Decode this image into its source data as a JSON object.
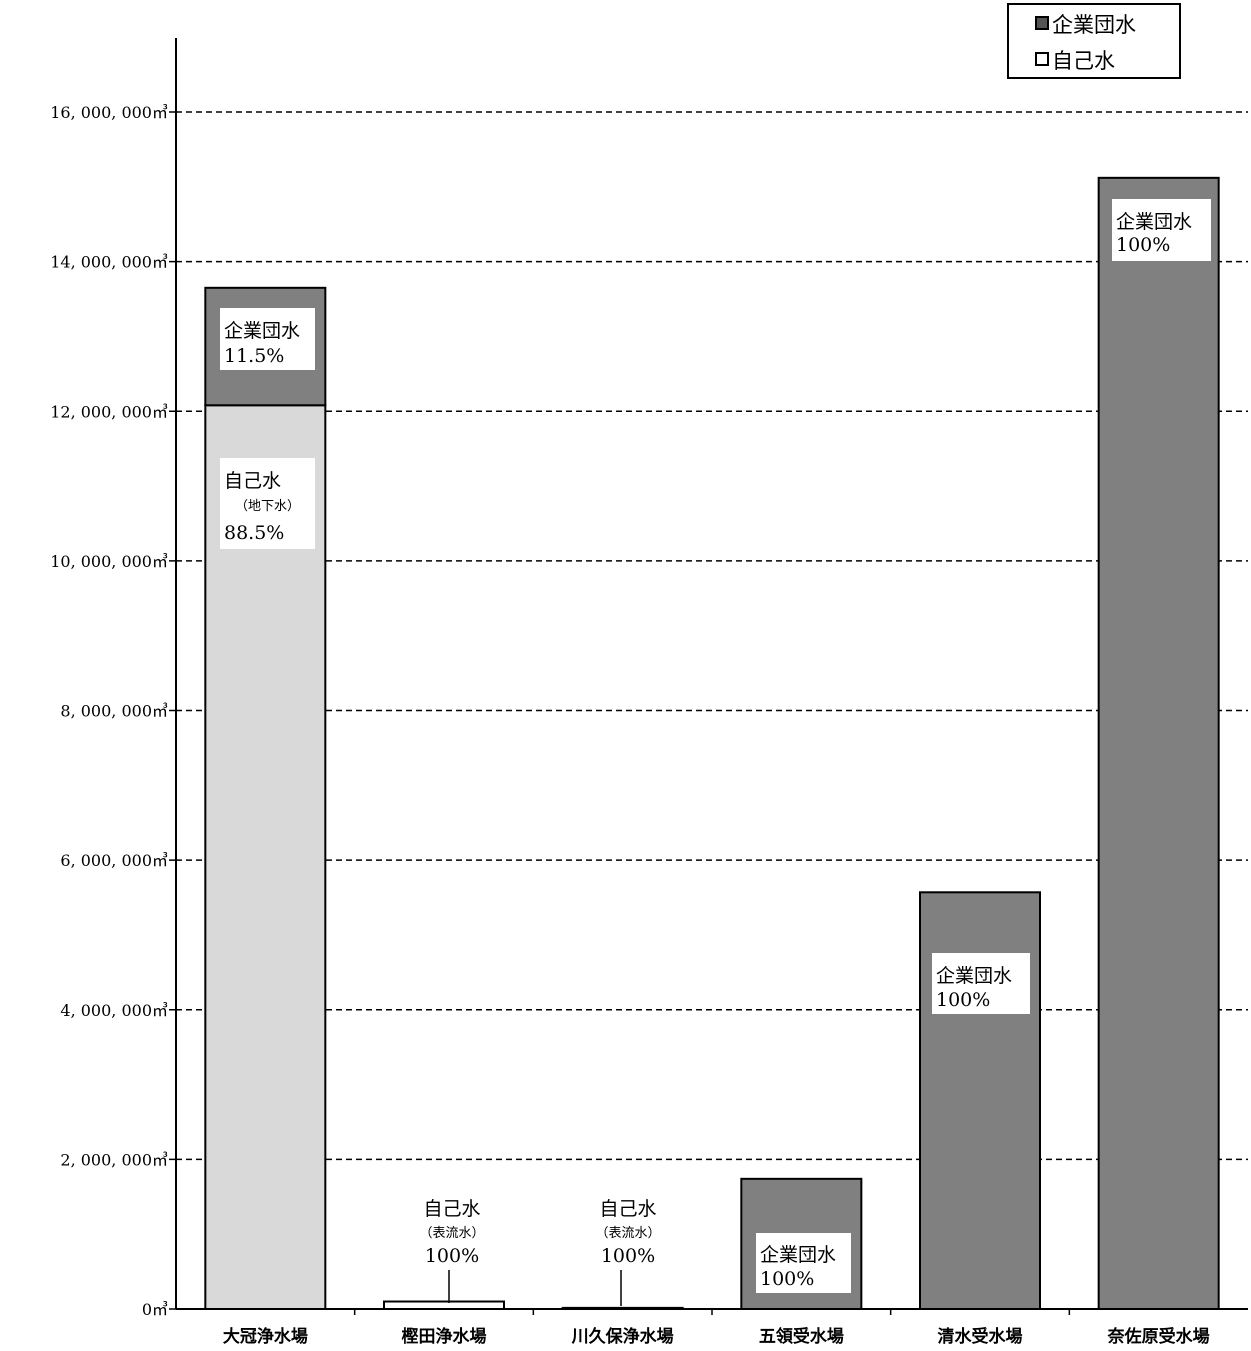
{
  "chart_data": {
    "type": "bar",
    "stacked": true,
    "categories": [
      "大冠浄水場",
      "樫田浄水場",
      "川久保浄水場",
      "五領受水場",
      "清水受水場",
      "奈佐原受水場"
    ],
    "series": [
      {
        "name": "自己水",
        "color": "#d9d9d9",
        "values": [
          12080000,
          100000,
          15000,
          0,
          0,
          0
        ]
      },
      {
        "name": "企業団水",
        "color": "#808080",
        "values": [
          1570000,
          0,
          0,
          1740000,
          5570000,
          15120000
        ]
      }
    ],
    "ylim": [
      0,
      16000000
    ],
    "yticks": [
      "0㎥",
      "2, 000, 000㎥",
      "4, 000, 000㎥",
      "6, 000, 000㎥",
      "8, 000, 000㎥",
      "10, 000, 000㎥",
      "12, 000, 000㎥",
      "14, 000, 000㎥",
      "16, 000, 000㎥"
    ],
    "grid": true,
    "legend_position": "top-right",
    "legend": [
      "企業団水",
      "自己水"
    ],
    "annotations": [
      {
        "category": "大冠浄水場",
        "lines": [
          "企業団水",
          "11.5%"
        ]
      },
      {
        "category": "大冠浄水場",
        "lines": [
          "自己水",
          "（地下水）",
          "88.5%"
        ]
      },
      {
        "category": "樫田浄水場",
        "lines": [
          "自己水",
          "（表流水）",
          "100%"
        ]
      },
      {
        "category": "川久保浄水場",
        "lines": [
          "自己水",
          "（表流水）",
          "100%"
        ]
      },
      {
        "category": "五領受水場",
        "lines": [
          "企業団水",
          "100%"
        ]
      },
      {
        "category": "清水受水場",
        "lines": [
          "企業団水",
          "100%"
        ]
      },
      {
        "category": "奈佐原受水場",
        "lines": [
          "企業団水",
          "100%"
        ]
      }
    ]
  }
}
